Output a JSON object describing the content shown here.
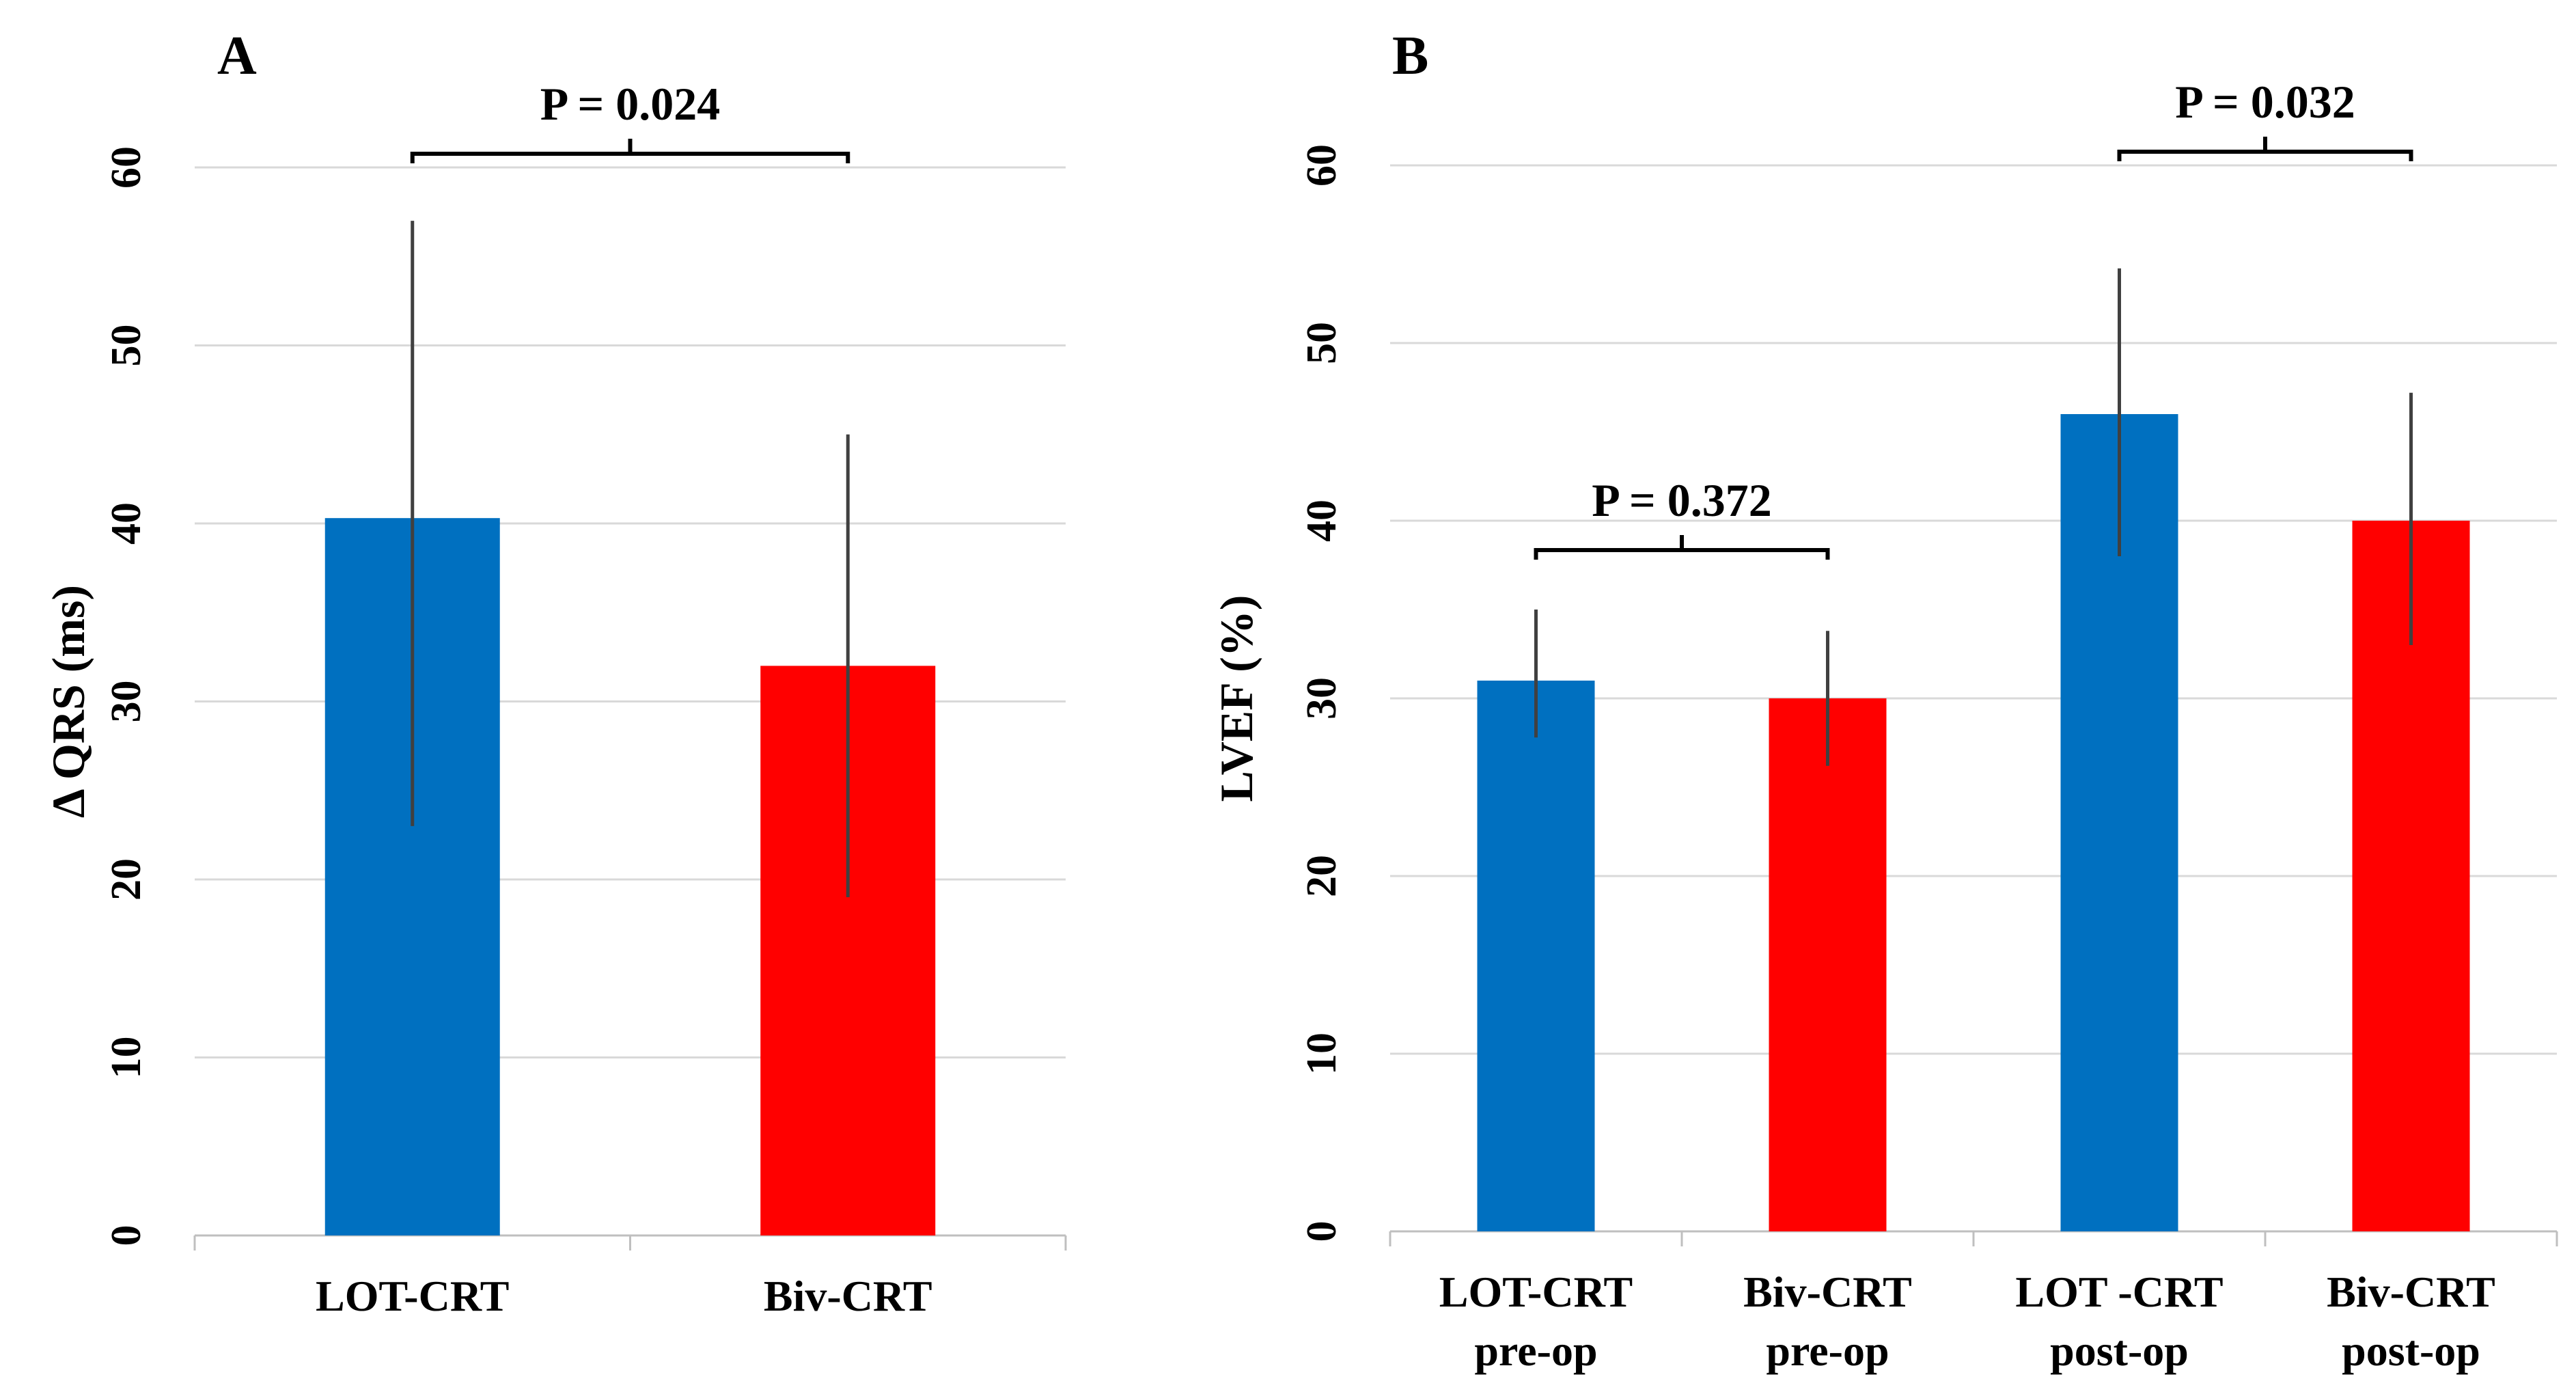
{
  "chart_data": [
    {
      "type": "bar",
      "panel_label": "A",
      "title": "",
      "xlabel": "",
      "ylabel": "Δ QRS (ms)",
      "ylim": [
        0,
        60
      ],
      "yticks": [
        0,
        10,
        20,
        30,
        40,
        50,
        60
      ],
      "grid": true,
      "categories": [
        {
          "lines": [
            "LOT-CRT"
          ]
        },
        {
          "lines": [
            "Biv-CRT"
          ]
        }
      ],
      "values": [
        40.3,
        32
      ],
      "error_bars": [
        [
          23,
          57
        ],
        [
          19,
          45
        ]
      ],
      "colors": [
        "#0070c0",
        "#ff0000"
      ],
      "comparisons": [
        {
          "label": "P = 0.024",
          "from": 0,
          "to": 1
        }
      ]
    },
    {
      "type": "bar",
      "panel_label": "B",
      "title": "",
      "xlabel": "",
      "ylabel": "LVEF (%)",
      "ylim": [
        0,
        60
      ],
      "yticks": [
        0,
        10,
        20,
        30,
        40,
        50,
        60
      ],
      "grid": true,
      "categories": [
        {
          "lines": [
            "LOT-CRT",
            "pre-op"
          ]
        },
        {
          "lines": [
            "Biv-CRT",
            "pre-op"
          ]
        },
        {
          "lines": [
            "LOT -CRT",
            "post-op"
          ]
        },
        {
          "lines": [
            "Biv-CRT",
            "post-op"
          ]
        }
      ],
      "values": [
        31,
        30,
        46,
        40
      ],
      "error_bars": [
        [
          27.8,
          35
        ],
        [
          26.2,
          33.8
        ],
        [
          38,
          54.2
        ],
        [
          33,
          47.2
        ]
      ],
      "colors": [
        "#0070c0",
        "#ff0000",
        "#0070c0",
        "#ff0000"
      ],
      "comparisons": [
        {
          "label": "P = 0.372",
          "from": 0,
          "to": 1
        },
        {
          "label": "P = 0.032",
          "from": 2,
          "to": 3
        }
      ]
    }
  ]
}
